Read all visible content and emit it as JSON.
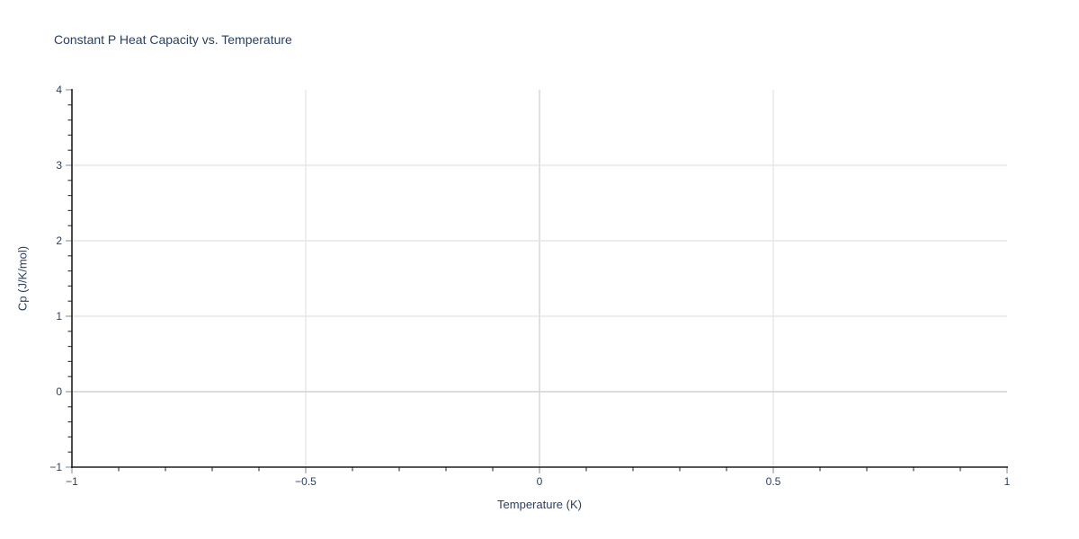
{
  "chart_data": {
    "type": "line",
    "title": "Constant P Heat Capacity vs. Temperature",
    "xlabel": "Temperature (K)",
    "ylabel": "Cp (J/K/mol)",
    "xlim": [
      -1,
      1
    ],
    "ylim": [
      -1,
      4
    ],
    "series": [],
    "x_ticks": [
      {
        "v": -1,
        "label": "−1"
      },
      {
        "v": -0.5,
        "label": "−0.5"
      },
      {
        "v": 0,
        "label": "0"
      },
      {
        "v": 0.5,
        "label": "0.5"
      },
      {
        "v": 1,
        "label": "1"
      }
    ],
    "y_ticks": [
      {
        "v": -1,
        "label": "−1"
      },
      {
        "v": 0,
        "label": "0"
      },
      {
        "v": 1,
        "label": "1"
      },
      {
        "v": 2,
        "label": "2"
      },
      {
        "v": 3,
        "label": "3"
      },
      {
        "v": 4,
        "label": "4"
      }
    ],
    "x_minor_step": 0.1,
    "y_minor_step": 0.2,
    "grid_on": true,
    "legend": "none",
    "colors": {
      "background": "#ffffff",
      "text": "#2a3f5f",
      "spine": "#1f1f1f",
      "gridline": "#e6e6e6",
      "zeroline": "#d2d2d2",
      "major_tick": "#a3a9b3",
      "minor_tick": "#3f3f3f"
    }
  }
}
